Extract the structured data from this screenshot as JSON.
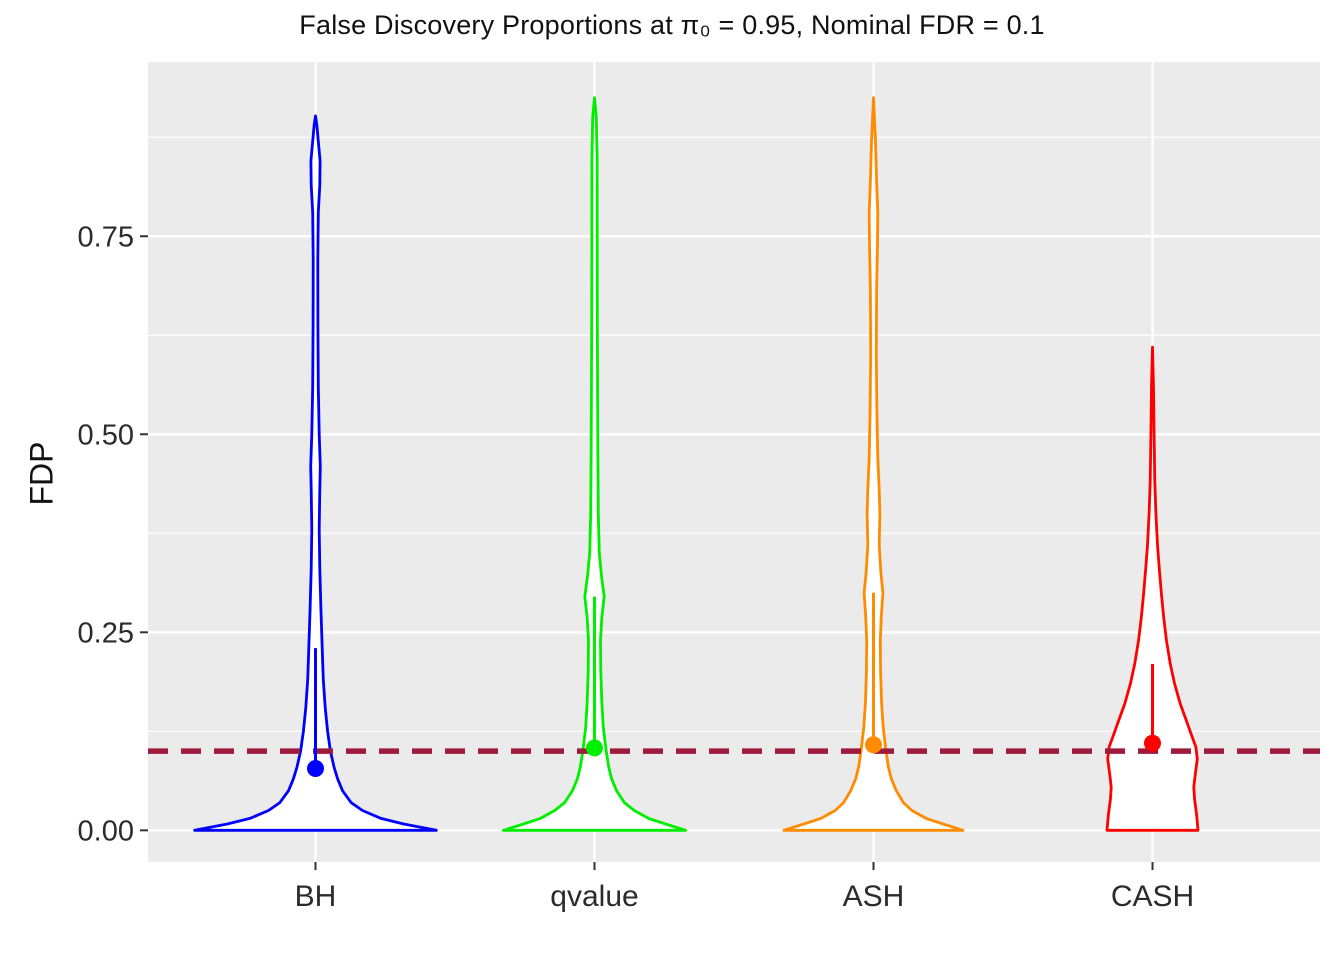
{
  "chart_data": {
    "type": "violin",
    "title": "False Discovery Proportions at π₀ = 0.95, Nominal FDR = 0.1",
    "xlabel": "",
    "ylabel": "FDP",
    "categories": [
      "BH",
      "qvalue",
      "ASH",
      "CASH"
    ],
    "ylim": [
      -0.04,
      0.97
    ],
    "y_major_ticks": [
      0.0,
      0.25,
      0.5,
      0.75
    ],
    "y_tick_labels": [
      "0.00",
      "0.25",
      "0.50",
      "0.75"
    ],
    "y_minor_ticks": [
      0.125,
      0.375,
      0.625,
      0.875
    ],
    "grid": true,
    "legend": "none",
    "panel": {
      "bg": "#EBEBEB",
      "grid_major": "#FFFFFF",
      "grid_minor": "#FFFFFF"
    },
    "nominal_fdr_line": {
      "value": 0.1,
      "color": "#9E1B3C",
      "style": "dashed"
    },
    "series": [
      {
        "name": "BH",
        "color": "#0000FF",
        "fill": "#FFFFFF",
        "mean": 0.078,
        "segment_top": 0.23,
        "max_fdp": 0.9,
        "profile": [
          [
            0.0,
            0.85
          ],
          [
            0.008,
            0.62
          ],
          [
            0.015,
            0.46
          ],
          [
            0.025,
            0.33
          ],
          [
            0.035,
            0.25
          ],
          [
            0.05,
            0.19
          ],
          [
            0.065,
            0.155
          ],
          [
            0.08,
            0.13
          ],
          [
            0.1,
            0.105
          ],
          [
            0.125,
            0.085
          ],
          [
            0.155,
            0.068
          ],
          [
            0.19,
            0.055
          ],
          [
            0.23,
            0.047
          ],
          [
            0.28,
            0.038
          ],
          [
            0.33,
            0.03
          ],
          [
            0.38,
            0.026
          ],
          [
            0.43,
            0.03
          ],
          [
            0.46,
            0.034
          ],
          [
            0.5,
            0.026
          ],
          [
            0.56,
            0.02
          ],
          [
            0.64,
            0.017
          ],
          [
            0.72,
            0.016
          ],
          [
            0.78,
            0.02
          ],
          [
            0.815,
            0.03
          ],
          [
            0.845,
            0.032
          ],
          [
            0.87,
            0.02
          ],
          [
            0.89,
            0.01
          ],
          [
            0.902,
            0.0
          ]
        ]
      },
      {
        "name": "qvalue",
        "color": "#00EE00",
        "fill": "#FFFFFF",
        "mean": 0.104,
        "segment_top": 0.295,
        "max_fdp": 0.925,
        "profile": [
          [
            0.0,
            0.64
          ],
          [
            0.008,
            0.5
          ],
          [
            0.015,
            0.38
          ],
          [
            0.025,
            0.28
          ],
          [
            0.035,
            0.21
          ],
          [
            0.05,
            0.155
          ],
          [
            0.065,
            0.12
          ],
          [
            0.08,
            0.1
          ],
          [
            0.1,
            0.082
          ],
          [
            0.13,
            0.062
          ],
          [
            0.16,
            0.052
          ],
          [
            0.2,
            0.044
          ],
          [
            0.24,
            0.042
          ],
          [
            0.27,
            0.052
          ],
          [
            0.295,
            0.068
          ],
          [
            0.32,
            0.05
          ],
          [
            0.35,
            0.034
          ],
          [
            0.4,
            0.027
          ],
          [
            0.47,
            0.024
          ],
          [
            0.55,
            0.022
          ],
          [
            0.65,
            0.02
          ],
          [
            0.75,
            0.019
          ],
          [
            0.85,
            0.018
          ],
          [
            0.9,
            0.013
          ],
          [
            0.925,
            0.0
          ]
        ]
      },
      {
        "name": "ASH",
        "color": "#FF8C00",
        "fill": "#FFFFFF",
        "mean": 0.108,
        "segment_top": 0.3,
        "max_fdp": 0.925,
        "profile": [
          [
            0.0,
            0.63
          ],
          [
            0.008,
            0.49
          ],
          [
            0.015,
            0.37
          ],
          [
            0.025,
            0.27
          ],
          [
            0.035,
            0.21
          ],
          [
            0.05,
            0.16
          ],
          [
            0.065,
            0.125
          ],
          [
            0.08,
            0.105
          ],
          [
            0.1,
            0.088
          ],
          [
            0.13,
            0.068
          ],
          [
            0.16,
            0.057
          ],
          [
            0.2,
            0.05
          ],
          [
            0.24,
            0.048
          ],
          [
            0.27,
            0.055
          ],
          [
            0.3,
            0.066
          ],
          [
            0.325,
            0.052
          ],
          [
            0.36,
            0.04
          ],
          [
            0.4,
            0.045
          ],
          [
            0.43,
            0.04
          ],
          [
            0.47,
            0.03
          ],
          [
            0.53,
            0.024
          ],
          [
            0.6,
            0.02
          ],
          [
            0.68,
            0.022
          ],
          [
            0.74,
            0.028
          ],
          [
            0.78,
            0.03
          ],
          [
            0.82,
            0.022
          ],
          [
            0.87,
            0.014
          ],
          [
            0.925,
            0.0
          ]
        ]
      },
      {
        "name": "CASH",
        "color": "#FF0000",
        "fill": "#FFFFFF",
        "mean": 0.11,
        "segment_top": 0.21,
        "max_fdp": 0.61,
        "profile": [
          [
            0.0,
            0.32
          ],
          [
            0.02,
            0.31
          ],
          [
            0.04,
            0.295
          ],
          [
            0.055,
            0.29
          ],
          [
            0.07,
            0.3
          ],
          [
            0.09,
            0.315
          ],
          [
            0.105,
            0.305
          ],
          [
            0.12,
            0.275
          ],
          [
            0.14,
            0.235
          ],
          [
            0.16,
            0.195
          ],
          [
            0.185,
            0.155
          ],
          [
            0.21,
            0.125
          ],
          [
            0.24,
            0.098
          ],
          [
            0.27,
            0.078
          ],
          [
            0.3,
            0.062
          ],
          [
            0.33,
            0.048
          ],
          [
            0.36,
            0.035
          ],
          [
            0.4,
            0.024
          ],
          [
            0.44,
            0.016
          ],
          [
            0.5,
            0.011
          ],
          [
            0.56,
            0.007
          ],
          [
            0.61,
            0.0
          ]
        ]
      }
    ]
  }
}
